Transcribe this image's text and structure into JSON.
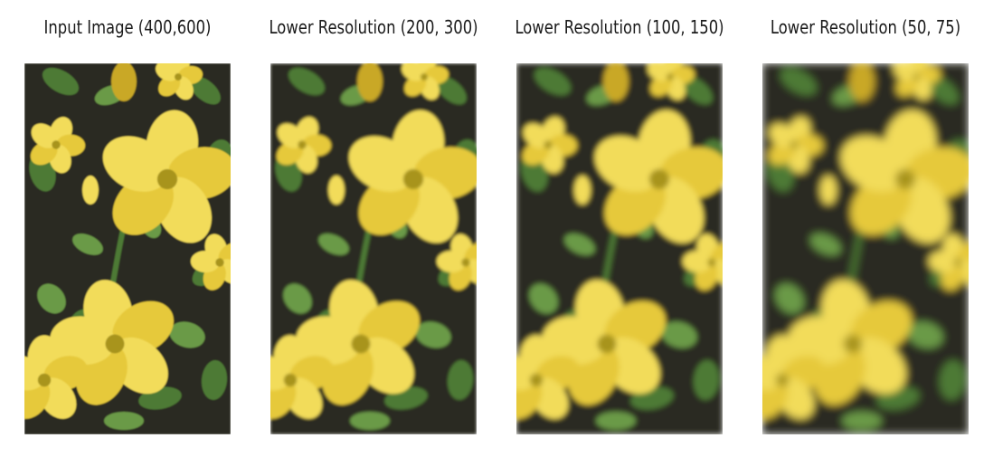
{
  "figure": {
    "panels": [
      {
        "title": "Input Image (400,600)",
        "pixel_block": 1
      },
      {
        "title": "Lower Resolution (200, 300)",
        "pixel_block": 2
      },
      {
        "title": "Lower Resolution (100, 150)",
        "pixel_block": 4
      },
      {
        "title": "Lower Resolution (50, 75)",
        "pixel_block": 8
      }
    ],
    "colors": {
      "background_dark": "#2a2a22",
      "foliage_green": "#4e7a34",
      "foliage_light": "#6b9a46",
      "petal_yellow": "#e6c93a",
      "petal_light": "#f2dc5a",
      "petal_shadow": "#c9a826",
      "flower_center": "#a8941f"
    }
  }
}
